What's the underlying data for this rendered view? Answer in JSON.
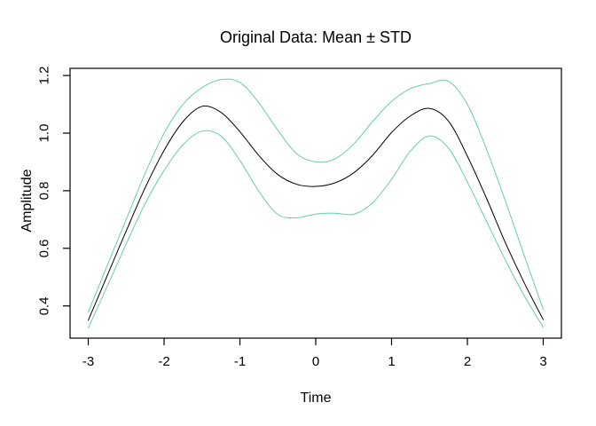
{
  "figure": {
    "title": "Original Data: Mean ± STD",
    "xlabel": "Time",
    "ylabel": "Amplitude"
  },
  "chart_data": {
    "type": "line",
    "title": "Original Data: Mean ± STD",
    "xlabel": "Time",
    "ylabel": "Amplitude",
    "xlim": [
      -3.24,
      3.24
    ],
    "ylim": [
      0.288,
      1.225
    ],
    "grid": false,
    "legend": "none",
    "box": true,
    "axis_color": "#000000",
    "x_ticks": {
      "values": [
        -3,
        -2,
        -1,
        0,
        1,
        2,
        3
      ],
      "labels": [
        "-3",
        "-2",
        "-1",
        "0",
        "1",
        "2",
        "3"
      ]
    },
    "y_ticks": {
      "values": [
        0.4,
        0.6,
        0.8,
        1.0,
        1.2
      ],
      "labels": [
        "0.4",
        "0.6",
        "0.8",
        "1.0",
        "1.2"
      ]
    },
    "x": [
      -3,
      -2.75,
      -2.5,
      -2.25,
      -2,
      -1.75,
      -1.5,
      -1.25,
      -1,
      -0.75,
      -0.5,
      -0.25,
      0,
      0.25,
      0.5,
      0.75,
      1,
      1.25,
      1.5,
      1.75,
      2,
      2.25,
      2.5,
      2.75,
      3
    ],
    "series": [
      {
        "name": "mean-plus-std",
        "label": "Mean + STD",
        "color": "#66CDAA",
        "values": [
          0.378,
          0.54,
          0.7,
          0.86,
          1.0,
          1.1,
          1.158,
          1.186,
          1.176,
          1.105,
          1.01,
          0.928,
          0.9,
          0.91,
          0.962,
          1.04,
          1.11,
          1.155,
          1.172,
          1.18,
          1.1,
          0.945,
          0.765,
          0.575,
          0.388
        ]
      },
      {
        "name": "mean",
        "label": "Mean",
        "color": "#000000",
        "values": [
          0.35,
          0.505,
          0.66,
          0.81,
          0.94,
          1.04,
          1.093,
          1.072,
          1.005,
          0.922,
          0.856,
          0.822,
          0.815,
          0.827,
          0.862,
          0.923,
          1.002,
          1.06,
          1.086,
          1.042,
          0.92,
          0.775,
          0.62,
          0.48,
          0.352
        ]
      },
      {
        "name": "mean-minus-std",
        "label": "Mean - STD",
        "color": "#66CDAA",
        "values": [
          0.323,
          0.468,
          0.615,
          0.755,
          0.87,
          0.96,
          1.007,
          0.99,
          0.905,
          0.798,
          0.718,
          0.706,
          0.719,
          0.722,
          0.718,
          0.758,
          0.84,
          0.938,
          0.99,
          0.948,
          0.83,
          0.695,
          0.56,
          0.435,
          0.326
        ]
      }
    ]
  }
}
